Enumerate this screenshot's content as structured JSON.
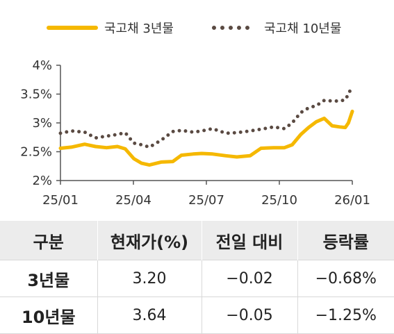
{
  "chart_data": {
    "type": "line",
    "x_tick_labels": [
      "25/01",
      "25/04",
      "25/07",
      "25/10",
      "26/01"
    ],
    "y_tick_labels": [
      "2%",
      "2.5%",
      "3%",
      "3.5%",
      "4%"
    ],
    "ylim": [
      2.0,
      4.0
    ],
    "x_range": [
      "2025-01-01",
      "2026-01-10"
    ],
    "grid": false,
    "legend_position": "top",
    "series": [
      {
        "name": "국고채 3년물",
        "color": "#f5b800",
        "style": "solid",
        "x": [
          "2025-01-01",
          "2025-01-15",
          "2025-02-01",
          "2025-02-15",
          "2025-03-01",
          "2025-03-15",
          "2025-03-25",
          "2025-04-05",
          "2025-04-15",
          "2025-04-25",
          "2025-05-10",
          "2025-05-25",
          "2025-06-05",
          "2025-06-20",
          "2025-07-01",
          "2025-07-15",
          "2025-08-01",
          "2025-08-15",
          "2025-09-01",
          "2025-09-15",
          "2025-10-01",
          "2025-10-15",
          "2025-10-25",
          "2025-11-05",
          "2025-11-15",
          "2025-11-25",
          "2025-12-05",
          "2025-12-15",
          "2025-12-25",
          "2026-01-01",
          "2026-01-05",
          "2026-01-10"
        ],
        "values": [
          2.56,
          2.58,
          2.63,
          2.59,
          2.57,
          2.59,
          2.55,
          2.38,
          2.3,
          2.27,
          2.32,
          2.33,
          2.44,
          2.46,
          2.47,
          2.46,
          2.43,
          2.41,
          2.43,
          2.56,
          2.57,
          2.57,
          2.62,
          2.8,
          2.92,
          3.02,
          3.08,
          2.95,
          2.93,
          2.92,
          3.0,
          3.2
        ]
      },
      {
        "name": "국고채 10년물",
        "color": "#5a4a42",
        "style": "dotted",
        "x": [
          "2025-01-01",
          "2025-01-15",
          "2025-02-01",
          "2025-02-15",
          "2025-03-01",
          "2025-03-15",
          "2025-03-25",
          "2025-04-05",
          "2025-04-15",
          "2025-04-25",
          "2025-05-10",
          "2025-05-25",
          "2025-06-05",
          "2025-06-20",
          "2025-07-01",
          "2025-07-15",
          "2025-08-01",
          "2025-08-15",
          "2025-09-01",
          "2025-09-15",
          "2025-10-01",
          "2025-10-15",
          "2025-10-25",
          "2025-11-05",
          "2025-11-15",
          "2025-11-25",
          "2025-12-05",
          "2025-12-15",
          "2025-12-25",
          "2026-01-01",
          "2026-01-05",
          "2026-01-10"
        ],
        "values": [
          2.82,
          2.86,
          2.84,
          2.74,
          2.77,
          2.8,
          2.83,
          2.65,
          2.62,
          2.58,
          2.7,
          2.85,
          2.87,
          2.84,
          2.86,
          2.9,
          2.82,
          2.83,
          2.86,
          2.89,
          2.93,
          2.9,
          3.0,
          3.18,
          3.26,
          3.3,
          3.39,
          3.38,
          3.38,
          3.4,
          3.5,
          3.64
        ]
      }
    ]
  },
  "table": {
    "headers": [
      "구분",
      "현재가(%)",
      "전일 대비",
      "등락률"
    ],
    "rows": [
      [
        "3년물",
        "3.20",
        "−0.02",
        "−0.68%"
      ],
      [
        "10년물",
        "3.64",
        "−0.05",
        "−1.25%"
      ]
    ]
  }
}
